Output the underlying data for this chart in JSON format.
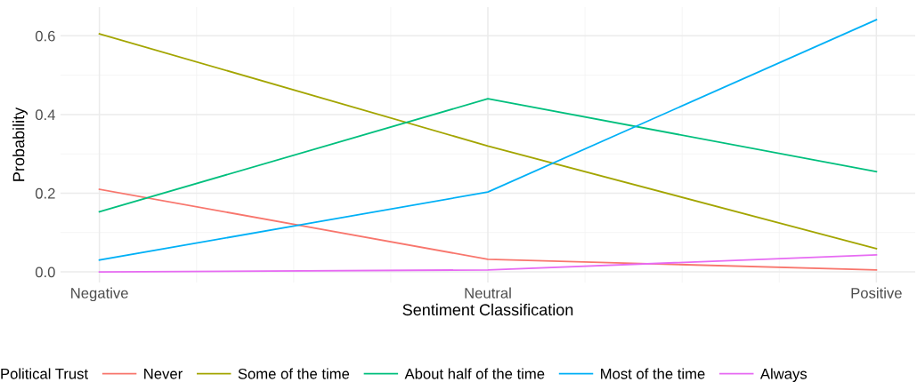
{
  "chart_data": {
    "type": "line",
    "xlabel": "Sentiment Classification",
    "ylabel": "Probability",
    "legend_title": "Political Trust",
    "categories": [
      "Negative",
      "Neutral",
      "Positive"
    ],
    "series": [
      {
        "name": "Never",
        "color": "#f8766d",
        "values": [
          0.21,
          0.032,
          0.005
        ]
      },
      {
        "name": "Some of the time",
        "color": "#a3a500",
        "values": [
          0.605,
          0.32,
          0.059
        ]
      },
      {
        "name": "About half of the time",
        "color": "#00bf7d",
        "values": [
          0.153,
          0.44,
          0.255
        ]
      },
      {
        "name": "Most of the time",
        "color": "#00b0f6",
        "values": [
          0.03,
          0.203,
          0.641
        ]
      },
      {
        "name": "Always",
        "color": "#e76bf3",
        "values": [
          0.0,
          0.005,
          0.043
        ]
      }
    ],
    "ylim": [
      -0.027,
      0.673
    ],
    "yticks": [
      {
        "value": 0,
        "label": "0.0"
      },
      {
        "value": 0.2,
        "label": "0.2"
      },
      {
        "value": 0.4,
        "label": "0.4"
      },
      {
        "value": 0.6,
        "label": "0.6"
      }
    ],
    "grid": true,
    "legend": "bottom",
    "marker": "none",
    "line_style": "solid"
  }
}
